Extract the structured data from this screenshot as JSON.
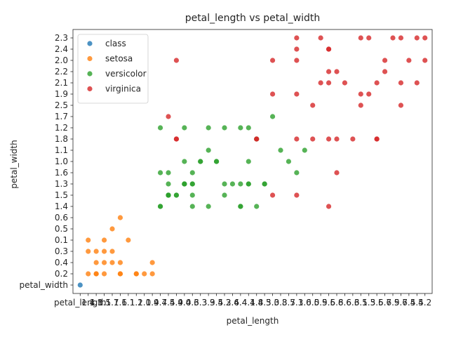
{
  "chart_data": {
    "type": "scatter",
    "title": "petal_length vs petal_width",
    "xlabel": "petal_length",
    "ylabel": "petal_width",
    "x_categories": [
      "petal_length",
      "1.4",
      "1.3",
      "1.5",
      "1.7",
      "1.6",
      "1.1",
      "1.2",
      "1.0",
      "1.9",
      "4.7",
      "4.5",
      "4.9",
      "4.0",
      "4.6",
      "3.3",
      "3.9",
      "3.5",
      "4.2",
      "3.6",
      "4.4",
      "4.1",
      "4.8",
      "4.3",
      "5.0",
      "3.8",
      "3.7",
      "5.1",
      "3.0",
      "6.0",
      "5.9",
      "5.6",
      "5.8",
      "6.6",
      "6.3",
      "6.1",
      "5.3",
      "5.5",
      "6.7",
      "6.9",
      "5.7",
      "6.4",
      "5.4",
      "5.2"
    ],
    "y_categories": [
      "petal_width",
      "0.2",
      "0.4",
      "0.3",
      "0.1",
      "0.5",
      "0.6",
      "1.4",
      "1.5",
      "1.3",
      "1.6",
      "1.0",
      "1.1",
      "1.8",
      "1.2",
      "1.7",
      "2.5",
      "1.9",
      "2.1",
      "2.2",
      "2.0",
      "2.4",
      "2.3"
    ],
    "legend_position": "upper-left",
    "series": [
      {
        "name": "class",
        "color": "#1f77b4",
        "points": [
          [
            "petal_length",
            "petal_width"
          ]
        ]
      },
      {
        "name": "setosa",
        "color": "#ff7f0e",
        "points": [
          [
            "1.4",
            "0.2"
          ],
          [
            "1.3",
            "0.2"
          ],
          [
            "1.5",
            "0.2"
          ],
          [
            "1.7",
            "0.4"
          ],
          [
            "1.4",
            "0.3"
          ],
          [
            "1.5",
            "0.1"
          ],
          [
            "1.6",
            "0.2"
          ],
          [
            "1.1",
            "0.1"
          ],
          [
            "1.2",
            "0.2"
          ],
          [
            "1.5",
            "0.4"
          ],
          [
            "1.3",
            "0.4"
          ],
          [
            "1.7",
            "0.3"
          ],
          [
            "1.0",
            "0.2"
          ],
          [
            "1.9",
            "0.2"
          ],
          [
            "1.6",
            "0.4"
          ],
          [
            "1.9",
            "0.4"
          ],
          [
            "1.4",
            "0.1"
          ],
          [
            "1.6",
            "0.6"
          ],
          [
            "1.7",
            "0.5"
          ],
          [
            "1.5",
            "0.3"
          ],
          [
            "1.3",
            "0.3"
          ],
          [
            "1.6",
            "0.2"
          ],
          [
            "1.3",
            "0.2"
          ],
          [
            "1.2",
            "0.2"
          ]
        ]
      },
      {
        "name": "versicolor",
        "color": "#2ca02c",
        "points": [
          [
            "4.7",
            "1.4"
          ],
          [
            "4.5",
            "1.5"
          ],
          [
            "4.9",
            "1.5"
          ],
          [
            "4.0",
            "1.3"
          ],
          [
            "4.6",
            "1.5"
          ],
          [
            "4.5",
            "1.3"
          ],
          [
            "4.7",
            "1.6"
          ],
          [
            "3.3",
            "1.0"
          ],
          [
            "4.6",
            "1.3"
          ],
          [
            "3.9",
            "1.4"
          ],
          [
            "3.5",
            "1.0"
          ],
          [
            "4.2",
            "1.5"
          ],
          [
            "4.0",
            "1.0"
          ],
          [
            "4.7",
            "1.4"
          ],
          [
            "3.6",
            "1.3"
          ],
          [
            "4.4",
            "1.4"
          ],
          [
            "4.5",
            "1.5"
          ],
          [
            "4.1",
            "1.0"
          ],
          [
            "4.5",
            "1.5"
          ],
          [
            "3.9",
            "1.1"
          ],
          [
            "4.8",
            "1.8"
          ],
          [
            "4.0",
            "1.3"
          ],
          [
            "4.9",
            "1.5"
          ],
          [
            "4.7",
            "1.2"
          ],
          [
            "4.3",
            "1.3"
          ],
          [
            "4.4",
            "1.4"
          ],
          [
            "4.8",
            "1.4"
          ],
          [
            "5.0",
            "1.7"
          ],
          [
            "4.5",
            "1.5"
          ],
          [
            "3.5",
            "1.0"
          ],
          [
            "3.8",
            "1.1"
          ],
          [
            "3.7",
            "1.0"
          ],
          [
            "3.9",
            "1.2"
          ],
          [
            "5.1",
            "1.6"
          ],
          [
            "4.5",
            "1.6"
          ],
          [
            "4.4",
            "1.3"
          ],
          [
            "4.1",
            "1.3"
          ],
          [
            "4.0",
            "1.3"
          ],
          [
            "4.4",
            "1.2"
          ],
          [
            "4.6",
            "1.4"
          ],
          [
            "4.0",
            "1.2"
          ],
          [
            "3.3",
            "1.0"
          ],
          [
            "4.2",
            "1.3"
          ],
          [
            "4.2",
            "1.2"
          ],
          [
            "4.3",
            "1.3"
          ],
          [
            "3.0",
            "1.1"
          ],
          [
            "4.1",
            "1.3"
          ],
          [
            "4.6",
            "1.3"
          ],
          [
            "4.6",
            "1.6"
          ],
          [
            "4.1",
            "1.2"
          ]
        ]
      },
      {
        "name": "virginica",
        "color": "#d62728",
        "points": [
          [
            "6.0",
            "2.5"
          ],
          [
            "5.1",
            "1.9"
          ],
          [
            "5.9",
            "2.1"
          ],
          [
            "5.6",
            "1.8"
          ],
          [
            "5.8",
            "2.2"
          ],
          [
            "6.6",
            "2.1"
          ],
          [
            "4.5",
            "1.7"
          ],
          [
            "6.3",
            "1.8"
          ],
          [
            "5.8",
            "1.8"
          ],
          [
            "6.1",
            "2.5"
          ],
          [
            "5.1",
            "2.0"
          ],
          [
            "5.3",
            "1.9"
          ],
          [
            "5.5",
            "2.1"
          ],
          [
            "5.0",
            "2.0"
          ],
          [
            "5.1",
            "2.4"
          ],
          [
            "5.3",
            "2.3"
          ],
          [
            "5.5",
            "1.8"
          ],
          [
            "6.7",
            "2.2"
          ],
          [
            "6.9",
            "2.3"
          ],
          [
            "5.0",
            "1.5"
          ],
          [
            "5.7",
            "2.3"
          ],
          [
            "4.9",
            "2.0"
          ],
          [
            "6.7",
            "2.0"
          ],
          [
            "4.9",
            "1.8"
          ],
          [
            "5.7",
            "2.1"
          ],
          [
            "6.0",
            "1.8"
          ],
          [
            "4.8",
            "1.8"
          ],
          [
            "4.9",
            "1.8"
          ],
          [
            "5.6",
            "2.1"
          ],
          [
            "5.8",
            "1.6"
          ],
          [
            "6.1",
            "1.9"
          ],
          [
            "6.4",
            "2.0"
          ],
          [
            "5.6",
            "2.2"
          ],
          [
            "5.1",
            "1.5"
          ],
          [
            "5.6",
            "1.4"
          ],
          [
            "6.1",
            "2.3"
          ],
          [
            "5.6",
            "2.4"
          ],
          [
            "5.5",
            "1.8"
          ],
          [
            "4.8",
            "1.8"
          ],
          [
            "5.4",
            "2.1"
          ],
          [
            "5.6",
            "2.4"
          ],
          [
            "5.1",
            "2.3"
          ],
          [
            "5.9",
            "2.3"
          ],
          [
            "5.7",
            "2.5"
          ],
          [
            "5.2",
            "2.3"
          ],
          [
            "5.0",
            "1.9"
          ],
          [
            "5.2",
            "2.0"
          ],
          [
            "5.4",
            "2.3"
          ],
          [
            "5.1",
            "1.8"
          ]
        ]
      }
    ]
  }
}
